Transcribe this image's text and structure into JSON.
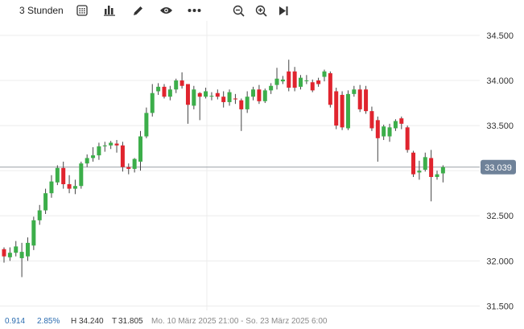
{
  "toolbar": {
    "timeframe_label": "3 Stunden",
    "icons": [
      "calendar-grid-icon",
      "bar-chart-icon",
      "pencil-icon",
      "eye-icon",
      "more-dots-icon",
      "zoom-out-icon",
      "zoom-in-icon",
      "play-to-end-icon"
    ]
  },
  "colors": {
    "up": "#3cae4a",
    "down": "#e0242e",
    "grid": "#ececec",
    "price_badge": "#6f8299",
    "wick": "#444444"
  },
  "chart_data": {
    "type": "candlestick",
    "y_ticks": [
      "34.500",
      "34.000",
      "33.500",
      "33.000",
      "32.500",
      "32.000",
      "31.500"
    ],
    "y_tick_values": [
      34500,
      34000,
      33500,
      33000,
      32500,
      32000,
      31500
    ],
    "ylim": [
      31450,
      34660
    ],
    "current_price_label": "33.039",
    "current_price": 33039,
    "candles": [
      [
        32130,
        32050,
        32150,
        31980
      ],
      [
        32040,
        32090,
        32150,
        32000
      ],
      [
        32090,
        32160,
        32220,
        32050
      ],
      [
        32030,
        32100,
        32200,
        31820
      ],
      [
        32050,
        32200,
        32260,
        32000
      ],
      [
        32170,
        32450,
        32490,
        32120
      ],
      [
        32450,
        32560,
        32620,
        32400
      ],
      [
        32560,
        32750,
        32800,
        32520
      ],
      [
        32750,
        32880,
        32950,
        32700
      ],
      [
        32870,
        33030,
        33060,
        32840
      ],
      [
        33030,
        32850,
        33100,
        32800
      ],
      [
        32850,
        32800,
        32950,
        32750
      ],
      [
        32800,
        32830,
        32900,
        32740
      ],
      [
        32830,
        33080,
        33100,
        32800
      ],
      [
        33080,
        33140,
        33180,
        33040
      ],
      [
        33140,
        33170,
        33260,
        33100
      ],
      [
        33170,
        33270,
        33310,
        33120
      ],
      [
        33270,
        33280,
        33320,
        33210
      ],
      [
        33280,
        33310,
        33330,
        33240
      ],
      [
        33300,
        33280,
        33340,
        33200
      ],
      [
        33280,
        33040,
        33320,
        32990
      ],
      [
        33040,
        33020,
        33080,
        32960
      ],
      [
        33020,
        33130,
        33140,
        32980
      ],
      [
        33100,
        33380,
        33440,
        33000
      ],
      [
        33380,
        33640,
        33700,
        33360
      ],
      [
        33640,
        33860,
        33960,
        33600
      ],
      [
        33880,
        33930,
        33970,
        33840
      ],
      [
        33930,
        33820,
        33960,
        33800
      ],
      [
        33820,
        33900,
        33940,
        33780
      ],
      [
        33900,
        34000,
        34020,
        33860
      ],
      [
        34000,
        33940,
        34090,
        33910
      ],
      [
        33960,
        33730,
        33940,
        33520
      ],
      [
        33720,
        33900,
        33940,
        33680
      ],
      [
        33860,
        33820,
        33870,
        33560
      ],
      [
        33820,
        33880,
        33920,
        33800
      ],
      [
        33830,
        33830,
        33870,
        33780
      ],
      [
        33860,
        33820,
        33900,
        33790
      ],
      [
        33820,
        33760,
        33880,
        33700
      ],
      [
        33760,
        33870,
        33900,
        33720
      ],
      [
        33800,
        33790,
        33850,
        33740
      ],
      [
        33780,
        33680,
        33800,
        33440
      ],
      [
        33680,
        33820,
        33880,
        33640
      ],
      [
        33820,
        33900,
        33930,
        33780
      ],
      [
        33900,
        33770,
        33950,
        33740
      ],
      [
        33770,
        33890,
        33910,
        33750
      ],
      [
        33890,
        33940,
        33970,
        33850
      ],
      [
        33950,
        34020,
        34140,
        33900
      ],
      [
        33990,
        34010,
        34050,
        33960
      ],
      [
        34100,
        33920,
        34230,
        33880
      ],
      [
        34100,
        33920,
        34150,
        33880
      ],
      [
        33930,
        34030,
        34060,
        33900
      ],
      [
        34000,
        34000,
        34060,
        33960
      ],
      [
        33980,
        33890,
        34010,
        33870
      ],
      [
        34000,
        33960,
        34030,
        33930
      ],
      [
        34040,
        34100,
        34120,
        33990
      ],
      [
        34080,
        33730,
        34100,
        33700
      ],
      [
        33880,
        33500,
        33920,
        33460
      ],
      [
        33840,
        33480,
        33880,
        33450
      ],
      [
        33470,
        33850,
        33890,
        33450
      ],
      [
        33850,
        33900,
        33940,
        33820
      ],
      [
        33900,
        33680,
        33950,
        33650
      ],
      [
        33900,
        33660,
        33940,
        33630
      ],
      [
        33660,
        33470,
        33710,
        33440
      ],
      [
        33560,
        33360,
        33600,
        33100
      ],
      [
        33380,
        33490,
        33510,
        33340
      ],
      [
        33380,
        33480,
        33520,
        33320
      ],
      [
        33470,
        33550,
        33570,
        33440
      ],
      [
        33580,
        33520,
        33600,
        33460
      ],
      [
        33480,
        33230,
        33500,
        33200
      ],
      [
        33200,
        32960,
        33220,
        32930
      ],
      [
        32980,
        33000,
        33110,
        32900
      ],
      [
        33010,
        33150,
        33200,
        32990
      ],
      [
        33140,
        32930,
        33230,
        32660
      ],
      [
        32930,
        32960,
        33000,
        32900
      ],
      [
        32970,
        33040,
        33060,
        32870
      ]
    ],
    "stats": {
      "change": "0.914",
      "change_pct": "2.85%",
      "high_label": "H",
      "high": "34.240",
      "low_label": "T",
      "low": "31.805",
      "range": "Mo. 10 März 2025 21:00 - So. 23 März 2025 6:00"
    }
  }
}
